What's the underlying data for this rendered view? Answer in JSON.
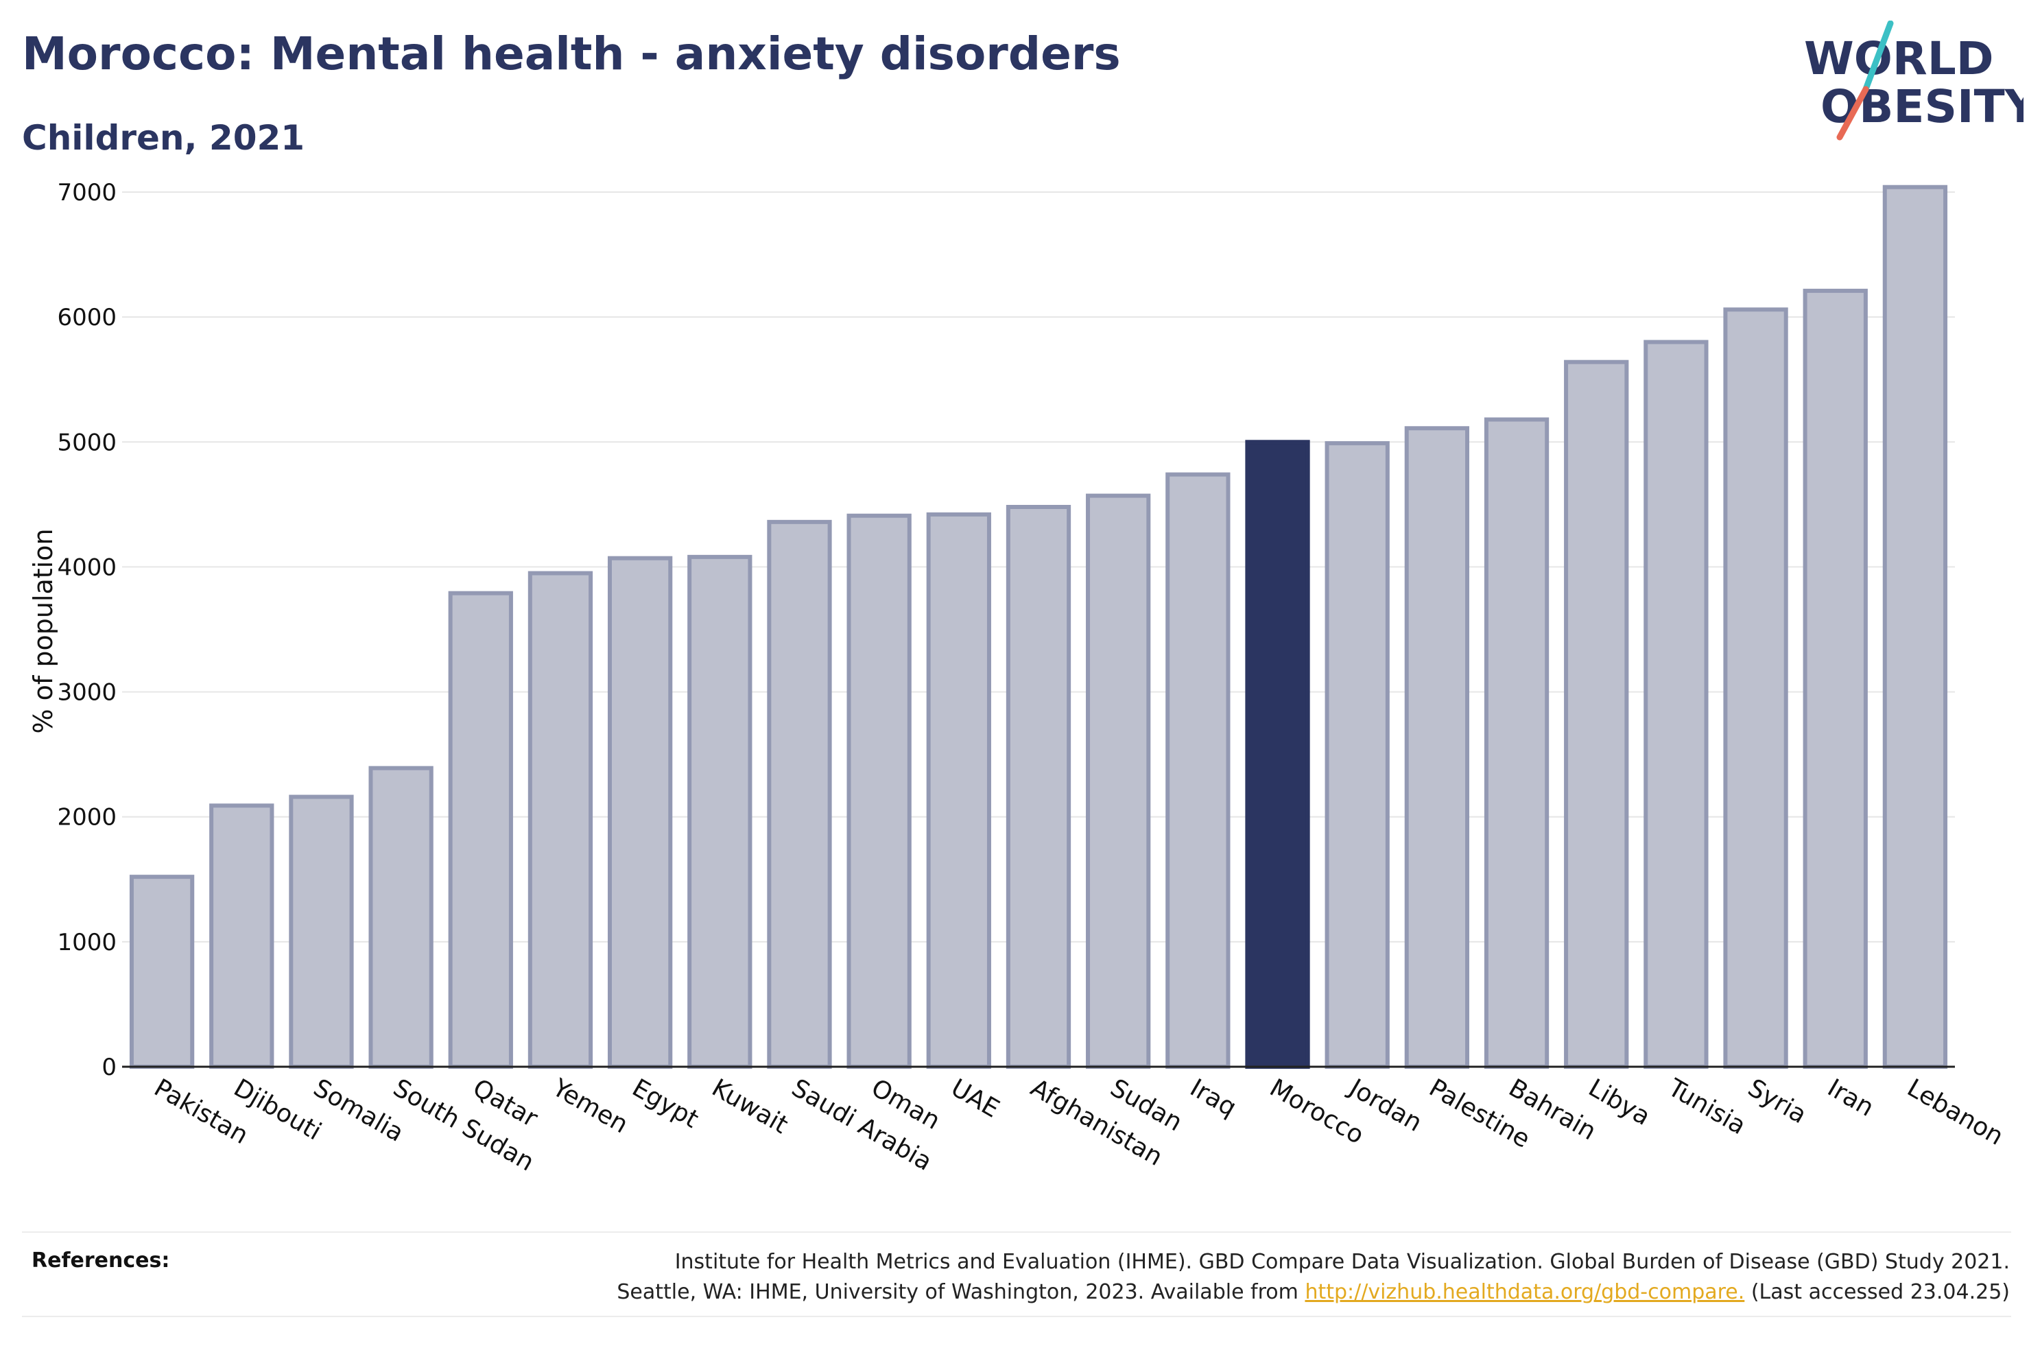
{
  "header": {
    "title": "Morocco: Mental health - anxiety disorders",
    "subtitle": "Children, 2021"
  },
  "logo": {
    "line1": "WORLD",
    "line2": "OBESITY",
    "slash_top_color": "#3cc0c5",
    "slash_bottom_color": "#e86a55",
    "text_color": "#2b3561"
  },
  "chart_data": {
    "type": "bar",
    "categories": [
      "Pakistan",
      "Djibouti",
      "Somalia",
      "South Sudan",
      "Qatar",
      "Yemen",
      "Egypt",
      "Kuwait",
      "Saudi Arabia",
      "Oman",
      "UAE",
      "Afghanistan",
      "Sudan",
      "Iraq",
      "Morocco",
      "Jordan",
      "Palestine",
      "Bahrain",
      "Libya",
      "Tunisia",
      "Syria",
      "Iran",
      "Lebanon"
    ],
    "values": [
      1520,
      2090,
      2160,
      2390,
      3790,
      3950,
      4070,
      4080,
      4360,
      4410,
      4420,
      4480,
      4570,
      4740,
      5000,
      4990,
      5110,
      5180,
      5640,
      5800,
      6060,
      6210,
      7040
    ],
    "highlight": "Morocco",
    "ylabel": "% of population",
    "xlabel": "",
    "ylim": [
      0,
      7000
    ],
    "yticks": [
      0,
      1000,
      2000,
      3000,
      4000,
      5000,
      6000,
      7000
    ],
    "grid": true,
    "colors": {
      "bar_fill": "#bdc0ce",
      "bar_stroke": "#9399b3",
      "highlight_fill": "#2b3561",
      "grid": "#e6e6e6",
      "axis": "#222222"
    }
  },
  "references": {
    "label": "References:",
    "line1": "Institute for Health Metrics and Evaluation (IHME). GBD Compare Data Visualization. Global Burden of Disease (GBD) Study 2021.",
    "line2_prefix": "Seattle, WA: IHME, University of Washington, 2023. Available from",
    "link": "http://vizhub.healthdata.org/gbd-compare.",
    "line2_suffix": "(Last accessed 23.04.25)"
  }
}
